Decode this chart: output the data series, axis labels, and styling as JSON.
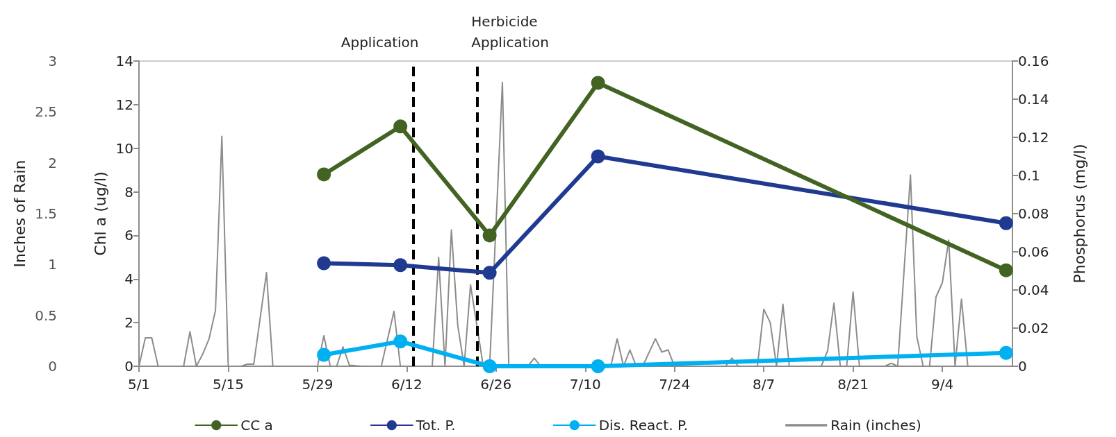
{
  "chart_data": {
    "type": "line",
    "ylabel": "Chl a (ug/l)",
    "y2label": "Phosphorus (mg/l)",
    "y3label": "Inches of Rain",
    "xlim": [
      "--05-01",
      "--09-15"
    ],
    "xticks": [
      {
        "value": "--05-01",
        "label": "5/1"
      },
      {
        "value": "--05-15",
        "label": "5/15"
      },
      {
        "value": "--05-29",
        "label": "5/29"
      },
      {
        "value": "--06-12",
        "label": "6/12"
      },
      {
        "value": "--06-26",
        "label": "6/26"
      },
      {
        "value": "--07-10",
        "label": "7/10"
      },
      {
        "value": "--07-24",
        "label": "7/24"
      },
      {
        "value": "--08-07",
        "label": "8/7"
      },
      {
        "value": "--08-21",
        "label": "8/21"
      },
      {
        "value": "--09-04",
        "label": "9/4"
      }
    ],
    "ylim": [
      0,
      14
    ],
    "yticks": [
      0,
      2,
      4,
      6,
      8,
      10,
      12,
      14
    ],
    "y2lim": [
      0,
      0.16
    ],
    "y2ticks": [
      0,
      0.02,
      0.04,
      0.06,
      0.08,
      0.1,
      0.12,
      0.14,
      0.16
    ],
    "y3lim": [
      0,
      3
    ],
    "y3ticks": [
      0,
      0.5,
      1,
      1.5,
      2,
      2.5,
      3
    ],
    "grid": false,
    "legend": "bottom",
    "marker": "circle",
    "series": [
      {
        "name": "CC a",
        "color": "#426322",
        "x": [
          "--05-30",
          "--06-11",
          "--06-25",
          "--07-12",
          "--09-14"
        ],
        "values": [
          8.8,
          11.0,
          6.0,
          13.0,
          4.4
        ]
      },
      {
        "name": "Tot. P.",
        "color": "#203a92",
        "axis": "y2",
        "x": [
          "--05-30",
          "--06-11",
          "--06-25",
          "--07-12",
          "--09-14"
        ],
        "values": [
          0.054,
          0.053,
          0.049,
          0.11,
          0.075
        ]
      },
      {
        "name": "Dis. React. P.",
        "color": "#00b0f0",
        "axis": "y2",
        "x": [
          "--05-30",
          "--06-11",
          "--06-25",
          "--07-12",
          "--09-14"
        ],
        "values": [
          0.006,
          0.013,
          0,
          0,
          0.007
        ]
      },
      {
        "name": "Rain (inches)",
        "color": "#8c8c8c",
        "axis": "y3",
        "marker": "none",
        "x": [
          "--05-01",
          "--05-02",
          "--05-03",
          "--05-04",
          "--05-08",
          "--05-09",
          "--05-10",
          "--05-11",
          "--05-12",
          "--05-13",
          "--05-14",
          "--05-15",
          "--05-17",
          "--05-18",
          "--05-19",
          "--05-21",
          "--05-22",
          "--05-29",
          "--05-30",
          "--05-31",
          "--06-01",
          "--06-02",
          "--06-03",
          "--06-05",
          "--06-08",
          "--06-10",
          "--06-11",
          "--06-16",
          "--06-17",
          "--06-18",
          "--06-19",
          "--06-20",
          "--06-21",
          "--06-22",
          "--06-23",
          "--06-24",
          "--06-25",
          "--06-27",
          "--06-28",
          "--06-29",
          "--07-01",
          "--07-02",
          "--07-03",
          "--07-14",
          "--07-15",
          "--07-16",
          "--07-17",
          "--07-18",
          "--07-19",
          "--07-21",
          "--07-22",
          "--07-23",
          "--07-24",
          "--08-01",
          "--08-02",
          "--08-03",
          "--08-06",
          "--08-07",
          "--08-08",
          "--08-09",
          "--08-10",
          "--08-11",
          "--08-16",
          "--08-17",
          "--08-18",
          "--08-19",
          "--08-20",
          "--08-21",
          "--08-22",
          "--08-26",
          "--08-27",
          "--08-28",
          "--08-30",
          "--08-31",
          "--09-01",
          "--09-02",
          "--09-03",
          "--09-04",
          "--09-05",
          "--09-06",
          "--09-07",
          "--09-08",
          "--09-14"
        ],
        "values": [
          0,
          0.28,
          0.28,
          0,
          0,
          0.34,
          0,
          0.12,
          0.27,
          0.55,
          2.26,
          0,
          0,
          0.02,
          0.02,
          0.92,
          0,
          0,
          0.3,
          0,
          0,
          0.19,
          0.01,
          0,
          0,
          0.54,
          0,
          0,
          1.07,
          0,
          1.34,
          0.4,
          0,
          0.8,
          0.4,
          0,
          0,
          2.79,
          0.01,
          0,
          0,
          0.08,
          0,
          0,
          0.27,
          0,
          0.16,
          0,
          0,
          0.27,
          0.14,
          0.16,
          0,
          0,
          0.08,
          0,
          0,
          0.56,
          0.43,
          0,
          0.61,
          0,
          0,
          0.15,
          0.62,
          0,
          0,
          0.73,
          0,
          0,
          0.03,
          0,
          1.88,
          0.29,
          0,
          0,
          0.68,
          0.82,
          1.24,
          0,
          0.66,
          0,
          0
        ]
      }
    ],
    "ref_lines": [
      {
        "axis": "x",
        "value": "--06-13",
        "label": "Application",
        "color": "#000000",
        "line_style": "dashed"
      },
      {
        "axis": "x",
        "value": "--06-23",
        "label": "Herbicide Application",
        "color": "#000000",
        "line_style": "dashed"
      }
    ]
  }
}
